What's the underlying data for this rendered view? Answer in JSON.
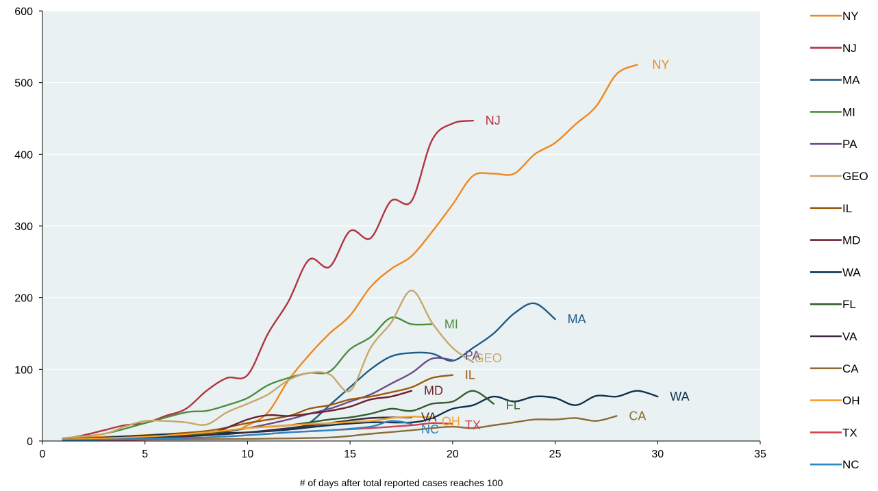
{
  "chart_data": {
    "type": "line",
    "title": "",
    "xlabel": "# of days after total reported cases reaches 100",
    "ylabel": "",
    "xlim": [
      0,
      35
    ],
    "ylim": [
      0,
      600
    ],
    "xticks": [
      0,
      5,
      10,
      15,
      20,
      25,
      30,
      35
    ],
    "yticks": [
      0,
      100,
      200,
      300,
      400,
      500,
      600
    ],
    "grid": "horizontal",
    "legend": "right",
    "series": [
      {
        "name": "NY",
        "color": "#F0871E",
        "label": "NY",
        "points": [
          [
            1,
            4
          ],
          [
            5,
            8
          ],
          [
            9,
            14
          ],
          [
            10,
            22
          ],
          [
            11,
            40
          ],
          [
            12,
            85
          ],
          [
            13,
            120
          ],
          [
            14,
            150
          ],
          [
            15,
            175
          ],
          [
            16,
            215
          ],
          [
            17,
            240
          ],
          [
            18,
            258
          ],
          [
            19,
            292
          ],
          [
            20,
            330
          ],
          [
            21,
            370
          ],
          [
            22,
            373
          ],
          [
            23,
            373
          ],
          [
            24,
            400
          ],
          [
            25,
            416
          ],
          [
            26,
            442
          ],
          [
            27,
            467
          ],
          [
            28,
            512
          ],
          [
            29,
            525
          ]
        ]
      },
      {
        "name": "NJ",
        "color": "#B2323F",
        "label": "NJ",
        "points": [
          [
            1,
            3
          ],
          [
            2,
            8
          ],
          [
            3,
            15
          ],
          [
            4,
            22
          ],
          [
            5,
            25
          ],
          [
            6,
            35
          ],
          [
            7,
            45
          ],
          [
            8,
            70
          ],
          [
            9,
            88
          ],
          [
            10,
            92
          ],
          [
            11,
            150
          ],
          [
            12,
            195
          ],
          [
            13,
            253
          ],
          [
            14,
            243
          ],
          [
            15,
            293
          ],
          [
            16,
            283
          ],
          [
            17,
            335
          ],
          [
            18,
            335
          ],
          [
            19,
            420
          ],
          [
            20,
            443
          ],
          [
            21,
            447
          ]
        ]
      },
      {
        "name": "MA",
        "color": "#1F5A86",
        "label": "MA",
        "points": [
          [
            1,
            2
          ],
          [
            5,
            5
          ],
          [
            8,
            8
          ],
          [
            10,
            12
          ],
          [
            12,
            16
          ],
          [
            13,
            25
          ],
          [
            14,
            50
          ],
          [
            15,
            75
          ],
          [
            16,
            100
          ],
          [
            17,
            118
          ],
          [
            18,
            123
          ],
          [
            19,
            122
          ],
          [
            20,
            112
          ],
          [
            21,
            130
          ],
          [
            22,
            150
          ],
          [
            23,
            178
          ],
          [
            24,
            192
          ],
          [
            25,
            170
          ]
        ]
      },
      {
        "name": "MI",
        "color": "#4E8B3E",
        "label": "MI",
        "points": [
          [
            1,
            4
          ],
          [
            3,
            10
          ],
          [
            5,
            25
          ],
          [
            7,
            40
          ],
          [
            8,
            42
          ],
          [
            9,
            50
          ],
          [
            10,
            60
          ],
          [
            11,
            78
          ],
          [
            12,
            88
          ],
          [
            13,
            95
          ],
          [
            14,
            97
          ],
          [
            15,
            128
          ],
          [
            16,
            145
          ],
          [
            17,
            172
          ],
          [
            18,
            163
          ],
          [
            19,
            163
          ]
        ]
      },
      {
        "name": "PA",
        "color": "#6B4C89",
        "label": "PA",
        "points": [
          [
            1,
            2
          ],
          [
            5,
            5
          ],
          [
            8,
            10
          ],
          [
            10,
            18
          ],
          [
            12,
            30
          ],
          [
            13,
            38
          ],
          [
            14,
            45
          ],
          [
            15,
            55
          ],
          [
            16,
            65
          ],
          [
            17,
            80
          ],
          [
            18,
            95
          ],
          [
            19,
            115
          ],
          [
            20,
            113
          ]
        ]
      },
      {
        "name": "GEO",
        "color": "#C8A66A",
        "label": "GEO",
        "points": [
          [
            1,
            4
          ],
          [
            3,
            10
          ],
          [
            4,
            20
          ],
          [
            5,
            28
          ],
          [
            6,
            28
          ],
          [
            7,
            26
          ],
          [
            8,
            23
          ],
          [
            9,
            40
          ],
          [
            10,
            52
          ],
          [
            11,
            65
          ],
          [
            12,
            85
          ],
          [
            13,
            95
          ],
          [
            14,
            93
          ],
          [
            15,
            70
          ],
          [
            16,
            130
          ],
          [
            17,
            165
          ],
          [
            18,
            210
          ],
          [
            19,
            165
          ],
          [
            20,
            130
          ],
          [
            21,
            110
          ]
        ]
      },
      {
        "name": "IL",
        "color": "#9A5A10",
        "label": "IL",
        "points": [
          [
            1,
            2
          ],
          [
            5,
            8
          ],
          [
            8,
            14
          ],
          [
            10,
            25
          ],
          [
            12,
            35
          ],
          [
            13,
            45
          ],
          [
            14,
            50
          ],
          [
            15,
            58
          ],
          [
            16,
            62
          ],
          [
            17,
            68
          ],
          [
            18,
            75
          ],
          [
            19,
            88
          ],
          [
            20,
            92
          ]
        ]
      },
      {
        "name": "MD",
        "color": "#6E1F2E",
        "label": "MD",
        "points": [
          [
            1,
            2
          ],
          [
            5,
            5
          ],
          [
            8,
            10
          ],
          [
            10,
            30
          ],
          [
            11,
            36
          ],
          [
            12,
            35
          ],
          [
            13,
            38
          ],
          [
            14,
            42
          ],
          [
            15,
            48
          ],
          [
            16,
            58
          ],
          [
            17,
            62
          ],
          [
            18,
            70
          ]
        ]
      },
      {
        "name": "WA",
        "color": "#0F3350",
        "label": "WA",
        "points": [
          [
            1,
            2
          ],
          [
            7,
            10
          ],
          [
            10,
            12
          ],
          [
            12,
            16
          ],
          [
            14,
            22
          ],
          [
            16,
            26
          ],
          [
            18,
            26
          ],
          [
            19,
            32
          ],
          [
            20,
            45
          ],
          [
            21,
            50
          ],
          [
            22,
            62
          ],
          [
            23,
            55
          ],
          [
            24,
            62
          ],
          [
            25,
            60
          ],
          [
            26,
            50
          ],
          [
            27,
            63
          ],
          [
            28,
            62
          ],
          [
            29,
            70
          ],
          [
            30,
            62
          ]
        ]
      },
      {
        "name": "FL",
        "color": "#335C2E",
        "label": "FL",
        "points": [
          [
            1,
            2
          ],
          [
            5,
            5
          ],
          [
            8,
            10
          ],
          [
            10,
            18
          ],
          [
            12,
            22
          ],
          [
            14,
            30
          ],
          [
            15,
            33
          ],
          [
            16,
            38
          ],
          [
            17,
            45
          ],
          [
            18,
            42
          ],
          [
            19,
            52
          ],
          [
            20,
            55
          ],
          [
            21,
            70
          ],
          [
            22,
            52
          ]
        ]
      },
      {
        "name": "VA",
        "color": "#3B2A3F",
        "label": "VA",
        "points": [
          [
            1,
            2
          ],
          [
            5,
            4
          ],
          [
            8,
            8
          ],
          [
            10,
            12
          ],
          [
            12,
            18
          ],
          [
            14,
            25
          ],
          [
            16,
            32
          ],
          [
            18,
            33
          ]
        ]
      },
      {
        "name": "CA",
        "color": "#8B6C36",
        "label": "CA",
        "points": [
          [
            1,
            1
          ],
          [
            5,
            2
          ],
          [
            10,
            3
          ],
          [
            14,
            5
          ],
          [
            16,
            10
          ],
          [
            18,
            15
          ],
          [
            19,
            18
          ],
          [
            20,
            20
          ],
          [
            21,
            18
          ],
          [
            22,
            22
          ],
          [
            23,
            26
          ],
          [
            24,
            30
          ],
          [
            25,
            30
          ],
          [
            26,
            32
          ],
          [
            27,
            28
          ],
          [
            28,
            35
          ]
        ]
      },
      {
        "name": "OH",
        "color": "#F5A02B",
        "label": "OH",
        "points": [
          [
            1,
            2
          ],
          [
            5,
            6
          ],
          [
            8,
            12
          ],
          [
            10,
            18
          ],
          [
            12,
            22
          ],
          [
            14,
            25
          ],
          [
            16,
            28
          ],
          [
            17,
            32
          ],
          [
            18,
            34
          ],
          [
            19,
            33
          ]
        ]
      },
      {
        "name": "TX",
        "color": "#D4404F",
        "label": "TX",
        "points": [
          [
            1,
            1
          ],
          [
            5,
            2
          ],
          [
            8,
            5
          ],
          [
            10,
            8
          ],
          [
            12,
            12
          ],
          [
            14,
            15
          ],
          [
            16,
            18
          ],
          [
            18,
            22
          ],
          [
            19,
            25
          ],
          [
            20,
            24
          ]
        ]
      },
      {
        "name": "NC",
        "color": "#2E86C1",
        "label": "NC",
        "points": [
          [
            1,
            1
          ],
          [
            5,
            3
          ],
          [
            8,
            5
          ],
          [
            10,
            8
          ],
          [
            12,
            12
          ],
          [
            14,
            15
          ],
          [
            16,
            20
          ],
          [
            17,
            28
          ],
          [
            18,
            24
          ]
        ]
      }
    ]
  }
}
